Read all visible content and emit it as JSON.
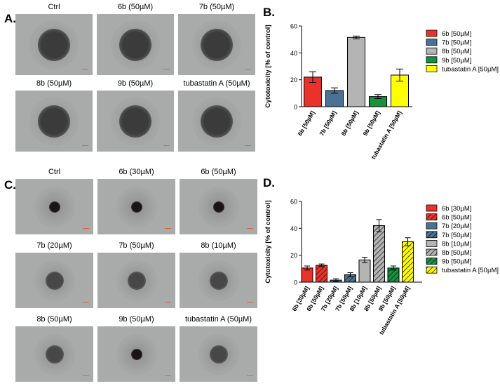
{
  "panels": {
    "a": {
      "letter": "A.",
      "images": [
        "Ctrl",
        "6b (50µM)",
        "7b (50µM)",
        "8b (50µM)",
        "9b (50µM)",
        "tubastatin A (50µM)"
      ]
    },
    "b": {
      "letter": "B."
    },
    "c": {
      "letter": "C.",
      "images": [
        "Ctrl",
        "6b (30µM)",
        "6b (50µM)",
        "7b (20µM)",
        "7b (50µM)",
        "8b (10µM)",
        "8b (50µM)",
        "9b (50µM)",
        "tubastatin A (50µM)"
      ]
    },
    "d": {
      "letter": "D."
    }
  },
  "chart_data": [
    {
      "type": "bar",
      "panel": "B",
      "ylabel": "Cytotoxicity [% of control]",
      "ylim": [
        0,
        60
      ],
      "yticks": [
        0,
        20,
        40,
        60
      ],
      "categories": [
        "6b [50µM]",
        "7b [50µM]",
        "8b [50µM]",
        "9b [50µM]",
        "tubastatin A [50µM]"
      ],
      "values": [
        22,
        12,
        51.5,
        7.5,
        23.5
      ],
      "errors": [
        4,
        2,
        1,
        1.5,
        4.5
      ],
      "colors": [
        "#e8322a",
        "#4a7295",
        "#b4b4b4",
        "#16913c",
        "#ffff00"
      ],
      "hatched": [
        false,
        false,
        false,
        false,
        false
      ],
      "legend": [
        "6b [50µM]",
        "7b [50µM]",
        "8b [50µM]",
        "9b [50µM]",
        "tubastatin A [50µM]"
      ],
      "legend_position": "right"
    },
    {
      "type": "bar",
      "panel": "D",
      "ylabel": "Cytotoxicity [% of control]",
      "ylim": [
        0,
        60
      ],
      "yticks": [
        0,
        20,
        40,
        60
      ],
      "categories": [
        "6b [30µM]",
        "6b [50µM]",
        "7b [20µM]",
        "7b [50µM]",
        "8b [10µM]",
        "8b [50µM]",
        "9b [50µM]",
        "tubastatin A [50µM]"
      ],
      "values": [
        10.5,
        12.5,
        1.5,
        5.5,
        16.5,
        42,
        10.5,
        30
      ],
      "errors": [
        1.5,
        1,
        1,
        1.5,
        2,
        4.5,
        1.5,
        3
      ],
      "colors": [
        "#e8322a",
        "#e8322a",
        "#4a7295",
        "#4a7295",
        "#b4b4b4",
        "#b4b4b4",
        "#16913c",
        "#ffff00"
      ],
      "hatched": [
        false,
        true,
        false,
        true,
        false,
        true,
        true,
        true
      ],
      "legend": [
        "6b  [30µM]",
        "6b [50µM]",
        "7b [20µM]",
        "7b [50µM]",
        "8b [10µM]",
        "8b [50µM]",
        "9b [50µM]",
        "tubastatin A [50µM]"
      ],
      "legend_position": "right"
    }
  ]
}
